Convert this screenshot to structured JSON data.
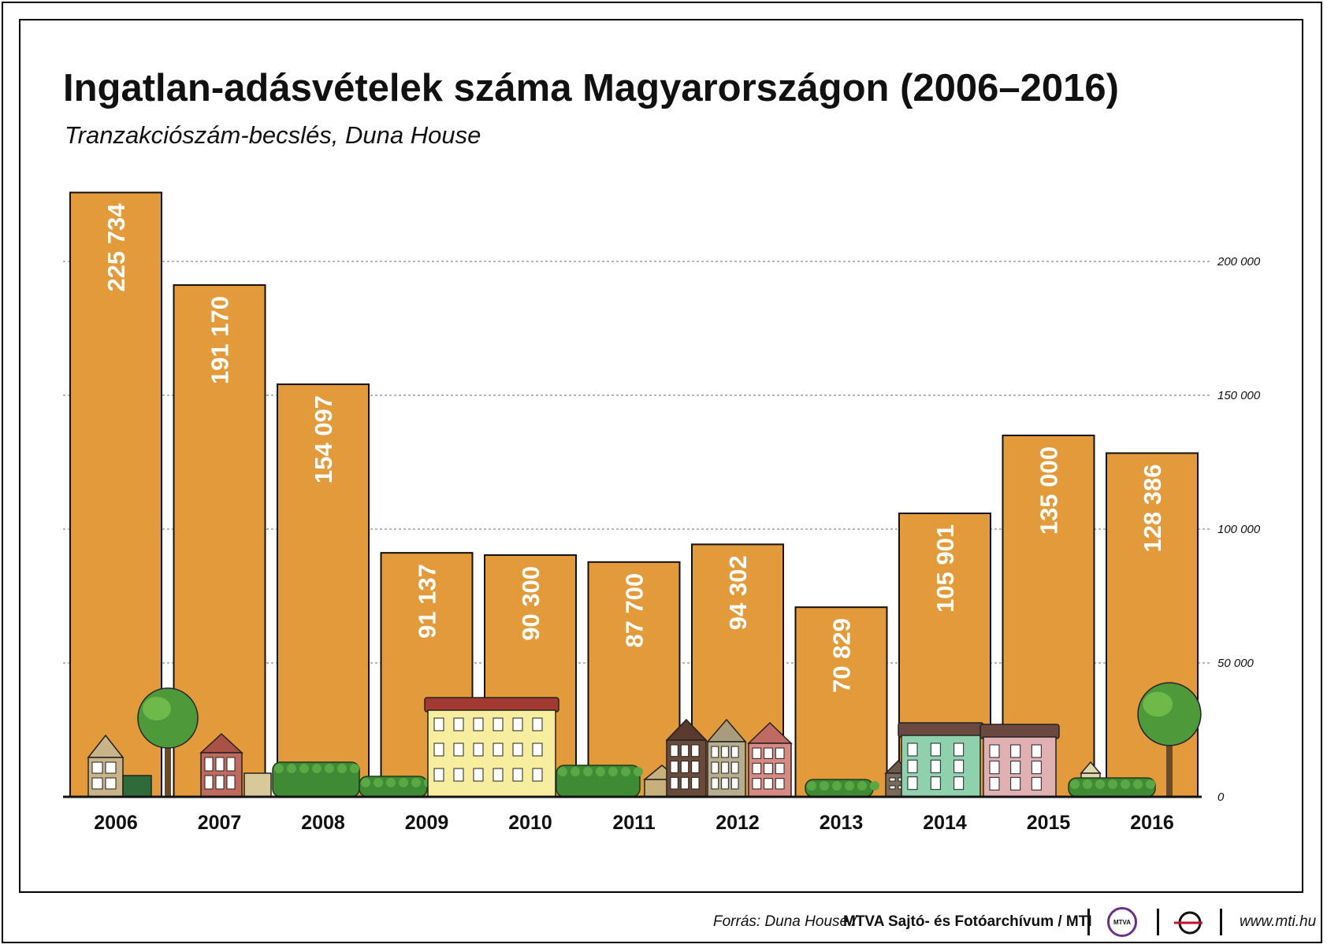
{
  "chart_data": {
    "type": "bar",
    "title": "Ingatlan-adásvételek száma Magyarországon (2006–2016)",
    "subtitle": "Tranzakciószám-becslés, Duna House",
    "categories": [
      "2006",
      "2007",
      "2008",
      "2009",
      "2010",
      "2011",
      "2012",
      "2013",
      "2014",
      "2015",
      "2016"
    ],
    "values": [
      225734,
      191170,
      154097,
      91137,
      90300,
      87700,
      94302,
      70829,
      105901,
      135000,
      128386
    ],
    "value_labels": [
      "225 734",
      "191 170",
      "154 097",
      "91 137",
      "90 300",
      "87 700",
      "94 302",
      "70 829",
      "105 901",
      "135 000",
      "128 386"
    ],
    "ylim": [
      0,
      230000
    ],
    "yticks": [
      0,
      50000,
      100000,
      150000,
      200000
    ],
    "ytick_labels": [
      "0",
      "50 000",
      "100 000",
      "150 000",
      "200 000"
    ],
    "grid": true,
    "y_axis_side": "right",
    "bar_color": "#e39a3a",
    "xlabel": "",
    "ylabel": ""
  },
  "footer": {
    "source_label": "Forrás: Duna House /",
    "source_org": "MTVA Sajtó- és Fotóarchívum / MTI",
    "logo_mtva": "MTVA",
    "website": "www.mti.hu"
  }
}
